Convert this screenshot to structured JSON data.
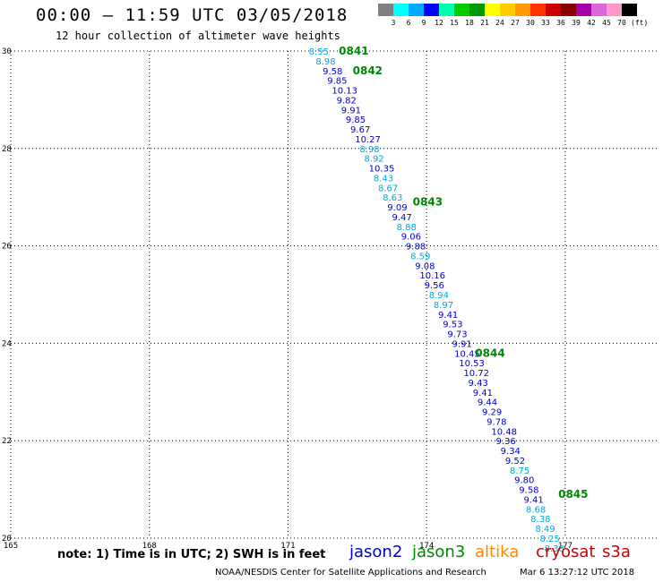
{
  "header": {
    "title": "00:00 – 11:59 UTC 03/05/2018",
    "subtitle": "12 hour collection of altimeter wave heights"
  },
  "colorbar": {
    "colors": [
      "#808080",
      "#00ffff",
      "#00aaff",
      "#0000ff",
      "#00ffaa",
      "#00cc00",
      "#009900",
      "#ffff00",
      "#ffcc00",
      "#ff9900",
      "#ff3300",
      "#cc0000",
      "#880000",
      "#aa00aa",
      "#dd66dd",
      "#ff99cc",
      "#000000"
    ],
    "labels": [
      "3",
      "6",
      "9",
      "12",
      "15",
      "18",
      "21",
      "24",
      "27",
      "30",
      "33",
      "36",
      "39",
      "42",
      "45",
      "70"
    ],
    "unit": "(ft)"
  },
  "series_colors": {
    "jason2": "#0000cc",
    "jason3": "#008800",
    "altika": "#ff8800",
    "cryosat": "#cc0000",
    "s3a": "#cc0000",
    "light": "#00aadd"
  },
  "chart_data": {
    "type": "scatter",
    "xlim": [
      165,
      179
    ],
    "ylim": [
      20,
      30
    ],
    "xticks": [
      "165",
      "168",
      "171",
      "174",
      "177"
    ],
    "xtick_values": [
      165,
      168,
      171,
      174,
      177
    ],
    "yticks": [
      "20",
      "22",
      "24",
      "26",
      "28",
      "30"
    ],
    "ytick_values": [
      20,
      22,
      24,
      26,
      28,
      30
    ],
    "grid": true,
    "points": [
      {
        "lon": 171.45,
        "lat": 30.0,
        "label": "8.55",
        "color": "light"
      },
      {
        "lon": 171.6,
        "lat": 29.8,
        "label": "8.98",
        "color": "light"
      },
      {
        "lon": 171.75,
        "lat": 29.6,
        "label": "9.58",
        "color": "jason2"
      },
      {
        "lon": 171.85,
        "lat": 29.4,
        "label": "9.85",
        "color": "jason2"
      },
      {
        "lon": 171.95,
        "lat": 29.2,
        "label": "10.13",
        "color": "jason2"
      },
      {
        "lon": 172.05,
        "lat": 29.0,
        "label": "9.82",
        "color": "jason2"
      },
      {
        "lon": 172.15,
        "lat": 28.8,
        "label": "9.91",
        "color": "jason2"
      },
      {
        "lon": 172.25,
        "lat": 28.6,
        "label": "9.85",
        "color": "jason2"
      },
      {
        "lon": 172.35,
        "lat": 28.4,
        "label": "9.67",
        "color": "jason2"
      },
      {
        "lon": 172.45,
        "lat": 28.2,
        "label": "10.27",
        "color": "jason2"
      },
      {
        "lon": 172.55,
        "lat": 28.0,
        "label": "8.98",
        "color": "light"
      },
      {
        "lon": 172.65,
        "lat": 27.8,
        "label": "8.92",
        "color": "light"
      },
      {
        "lon": 172.75,
        "lat": 27.6,
        "label": "10.35",
        "color": "jason2"
      },
      {
        "lon": 172.85,
        "lat": 27.4,
        "label": "8.43",
        "color": "light"
      },
      {
        "lon": 172.95,
        "lat": 27.2,
        "label": "8.67",
        "color": "light"
      },
      {
        "lon": 173.05,
        "lat": 27.0,
        "label": "8.63",
        "color": "light"
      },
      {
        "lon": 173.15,
        "lat": 26.8,
        "label": "9.09",
        "color": "jason2"
      },
      {
        "lon": 173.25,
        "lat": 26.6,
        "label": "9.47",
        "color": "jason2"
      },
      {
        "lon": 173.35,
        "lat": 26.4,
        "label": "8.88",
        "color": "light"
      },
      {
        "lon": 173.45,
        "lat": 26.2,
        "label": "9.06",
        "color": "jason2"
      },
      {
        "lon": 173.55,
        "lat": 26.0,
        "label": "9.88",
        "color": "jason2"
      },
      {
        "lon": 173.65,
        "lat": 25.8,
        "label": "8.59",
        "color": "light"
      },
      {
        "lon": 173.75,
        "lat": 25.6,
        "label": "9.08",
        "color": "jason2"
      },
      {
        "lon": 173.85,
        "lat": 25.4,
        "label": "10.16",
        "color": "jason2"
      },
      {
        "lon": 173.95,
        "lat": 25.2,
        "label": "9.56",
        "color": "jason2"
      },
      {
        "lon": 174.05,
        "lat": 25.0,
        "label": "8.94",
        "color": "light"
      },
      {
        "lon": 174.15,
        "lat": 24.8,
        "label": "8.97",
        "color": "light"
      },
      {
        "lon": 174.25,
        "lat": 24.6,
        "label": "9.41",
        "color": "jason2"
      },
      {
        "lon": 174.35,
        "lat": 24.4,
        "label": "9.53",
        "color": "jason2"
      },
      {
        "lon": 174.45,
        "lat": 24.2,
        "label": "9.73",
        "color": "jason2"
      },
      {
        "lon": 174.55,
        "lat": 24.0,
        "label": "9.91",
        "color": "jason2"
      },
      {
        "lon": 174.6,
        "lat": 23.8,
        "label": "10.45",
        "color": "jason2"
      },
      {
        "lon": 174.7,
        "lat": 23.6,
        "label": "10.53",
        "color": "jason2"
      },
      {
        "lon": 174.8,
        "lat": 23.4,
        "label": "10.72",
        "color": "jason2"
      },
      {
        "lon": 174.9,
        "lat": 23.2,
        "label": "9.43",
        "color": "jason2"
      },
      {
        "lon": 175.0,
        "lat": 23.0,
        "label": "9.41",
        "color": "jason2"
      },
      {
        "lon": 175.1,
        "lat": 22.8,
        "label": "9.44",
        "color": "jason2"
      },
      {
        "lon": 175.2,
        "lat": 22.6,
        "label": "9.29",
        "color": "jason2"
      },
      {
        "lon": 175.3,
        "lat": 22.4,
        "label": "9.78",
        "color": "jason2"
      },
      {
        "lon": 175.4,
        "lat": 22.2,
        "label": "10.48",
        "color": "jason2"
      },
      {
        "lon": 175.5,
        "lat": 22.0,
        "label": "9.36",
        "color": "jason2"
      },
      {
        "lon": 175.6,
        "lat": 21.8,
        "label": "9.34",
        "color": "jason2"
      },
      {
        "lon": 175.7,
        "lat": 21.6,
        "label": "9.52",
        "color": "jason2"
      },
      {
        "lon": 175.8,
        "lat": 21.4,
        "label": "8.75",
        "color": "light"
      },
      {
        "lon": 175.9,
        "lat": 21.2,
        "label": "9.80",
        "color": "jason2"
      },
      {
        "lon": 176.0,
        "lat": 21.0,
        "label": "9.58",
        "color": "jason2"
      },
      {
        "lon": 176.1,
        "lat": 20.8,
        "label": "9.41",
        "color": "jason2"
      },
      {
        "lon": 176.15,
        "lat": 20.6,
        "label": "8.68",
        "color": "light"
      },
      {
        "lon": 176.25,
        "lat": 20.4,
        "label": "8.38",
        "color": "light"
      },
      {
        "lon": 176.35,
        "lat": 20.2,
        "label": "8.49",
        "color": "light"
      },
      {
        "lon": 176.45,
        "lat": 20.0,
        "label": "8.25",
        "color": "light"
      },
      {
        "lon": 176.55,
        "lat": 19.8,
        "label": "8.38",
        "color": "light"
      }
    ],
    "annotations": [
      {
        "lon": 172.1,
        "lat": 30.0,
        "text": "0841",
        "color": "jason3"
      },
      {
        "lon": 172.4,
        "lat": 29.6,
        "text": "0842",
        "color": "jason3"
      },
      {
        "lon": 173.7,
        "lat": 26.9,
        "text": "0843",
        "color": "jason3"
      },
      {
        "lon": 175.05,
        "lat": 23.8,
        "text": "0844",
        "color": "jason3"
      },
      {
        "lon": 176.85,
        "lat": 20.9,
        "text": "0845",
        "color": "jason3"
      }
    ]
  },
  "footer": {
    "note": "note:  1) Time is in UTC;  2) SWH is in feet",
    "legend": [
      {
        "name": "jason2",
        "color": "#0000cc"
      },
      {
        "name": "jason3",
        "color": "#008800"
      },
      {
        "name": "altika",
        "color": "#ff8800"
      },
      {
        "name": "cryosat",
        "color": "#cc0000"
      },
      {
        "name": "s3a",
        "color": "#cc0000"
      }
    ],
    "credit": "NOAA/NESDIS Center for Satellite Applications and Research",
    "timestamp": "Mar  6 13:27:12 UTC 2018"
  }
}
